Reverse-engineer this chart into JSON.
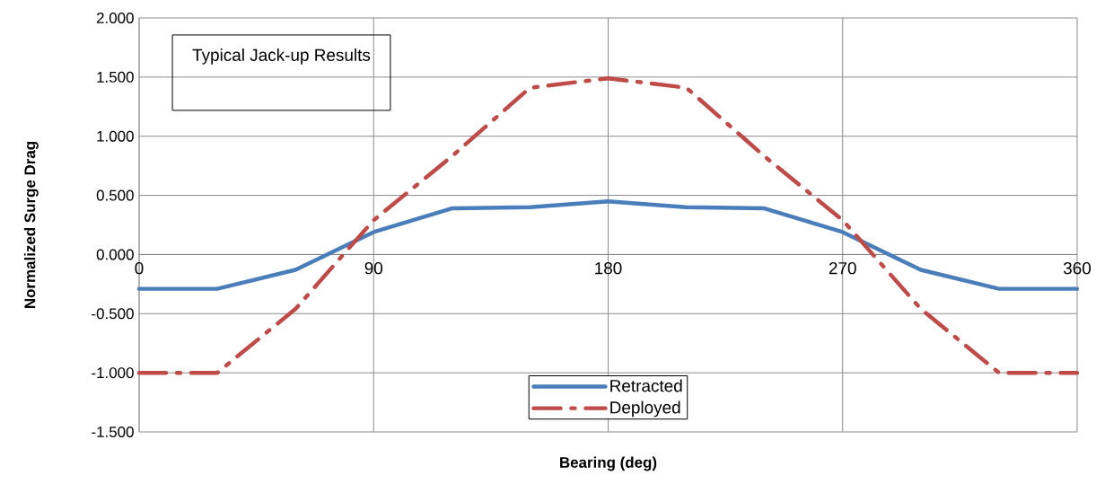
{
  "chart_data": {
    "type": "line",
    "xlabel": "Bearing (deg)",
    "ylabel": "Normalized Surge Drag",
    "annotations": [
      "Typical Jack-up Results"
    ],
    "x": [
      0,
      30,
      60,
      90,
      120,
      150,
      180,
      210,
      240,
      270,
      300,
      330,
      360
    ],
    "series": [
      {
        "name": "Retracted",
        "color": "#4a7ebb",
        "line_style": "solid",
        "values": [
          -0.29,
          -0.29,
          -0.13,
          0.19,
          0.39,
          0.4,
          0.45,
          0.4,
          0.39,
          0.19,
          -0.13,
          -0.29,
          -0.29
        ]
      },
      {
        "name": "Deployed",
        "color": "#be4b48",
        "line_style": "dashed",
        "values": [
          -1.0,
          -1.0,
          -0.46,
          0.29,
          0.83,
          1.41,
          1.49,
          1.41,
          0.83,
          0.29,
          -0.46,
          -1.0,
          -1.0
        ]
      }
    ],
    "xlim": [
      0,
      360
    ],
    "ylim": [
      -1.5,
      2.0
    ],
    "xticks": [
      0,
      90,
      180,
      270,
      360
    ],
    "yticks": [
      {
        "value": -1.5,
        "label": "-1.500"
      },
      {
        "value": -1.0,
        "label": "-1.000"
      },
      {
        "value": -0.5,
        "label": "-0.500"
      },
      {
        "value": 0,
        "label": "0.000"
      },
      {
        "value": 0.5,
        "label": "0.500"
      },
      {
        "value": 1.0,
        "label": "1.000"
      },
      {
        "value": 1.5,
        "label": "1.500"
      },
      {
        "value": 2.0,
        "label": "2.000"
      }
    ],
    "grid": true,
    "legend": "bottom"
  }
}
